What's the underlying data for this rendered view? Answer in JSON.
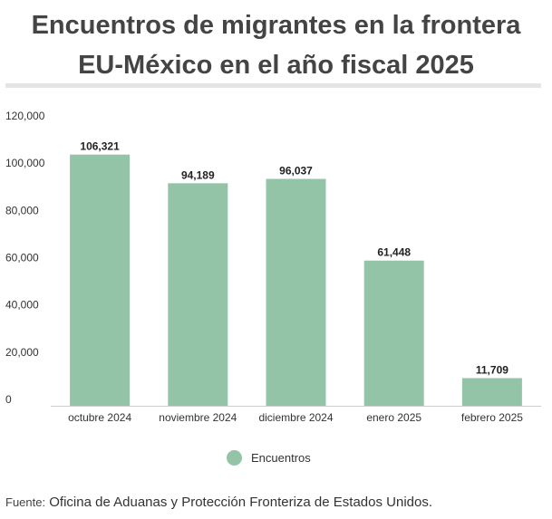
{
  "title_line1": "Encuentros de migrantes en la frontera",
  "title_line2": "EU-México en el año fiscal 2025",
  "source_label": "Fuente:",
  "source_text": "Oficina de Aduanas y Protección Fronteriza de Estados Unidos.",
  "colors": {
    "bar": "#93c4a8",
    "grid": "#cccccc",
    "text": "#333333"
  },
  "chart_data": {
    "type": "bar",
    "categories": [
      "octubre 2024",
      "noviembre 2024",
      "diciembre 2024",
      "enero 2025",
      "febrero 2025"
    ],
    "series": [
      {
        "name": "Encuentros",
        "values": [
          106321,
          94189,
          96037,
          61448,
          11709
        ]
      }
    ],
    "value_labels": [
      "106,321",
      "94,189",
      "96,037",
      "61,448",
      "11,709"
    ],
    "yticks": [
      0,
      20000,
      40000,
      60000,
      80000,
      100000,
      120000
    ],
    "ytick_labels": [
      "0",
      "20,000",
      "40,000",
      "60,000",
      "80,000",
      "100,000",
      "120,000"
    ],
    "ylim": [
      0,
      120000
    ],
    "grid": false,
    "legend": "bottom-center",
    "xlabel": "",
    "ylabel": ""
  }
}
